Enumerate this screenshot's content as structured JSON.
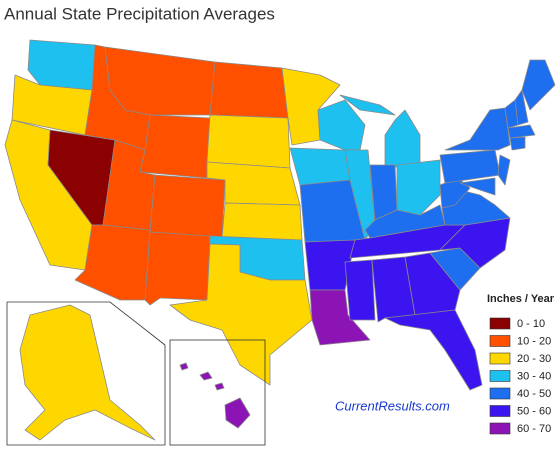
{
  "title": "Annual State Precipitation Averages",
  "legend": {
    "title": "Inches / Year",
    "items": [
      {
        "label": "0 - 10",
        "color": "#8b0000"
      },
      {
        "label": "10 - 20",
        "color": "#ff5000"
      },
      {
        "label": "20 - 30",
        "color": "#ffd700"
      },
      {
        "label": "30 - 40",
        "color": "#1ec0f0"
      },
      {
        "label": "40 - 50",
        "color": "#1e6ef0"
      },
      {
        "label": "50 - 60",
        "color": "#3c14f0"
      },
      {
        "label": "60 - 70",
        "color": "#8c14b4"
      }
    ]
  },
  "credit": "CurrentResults.com"
}
